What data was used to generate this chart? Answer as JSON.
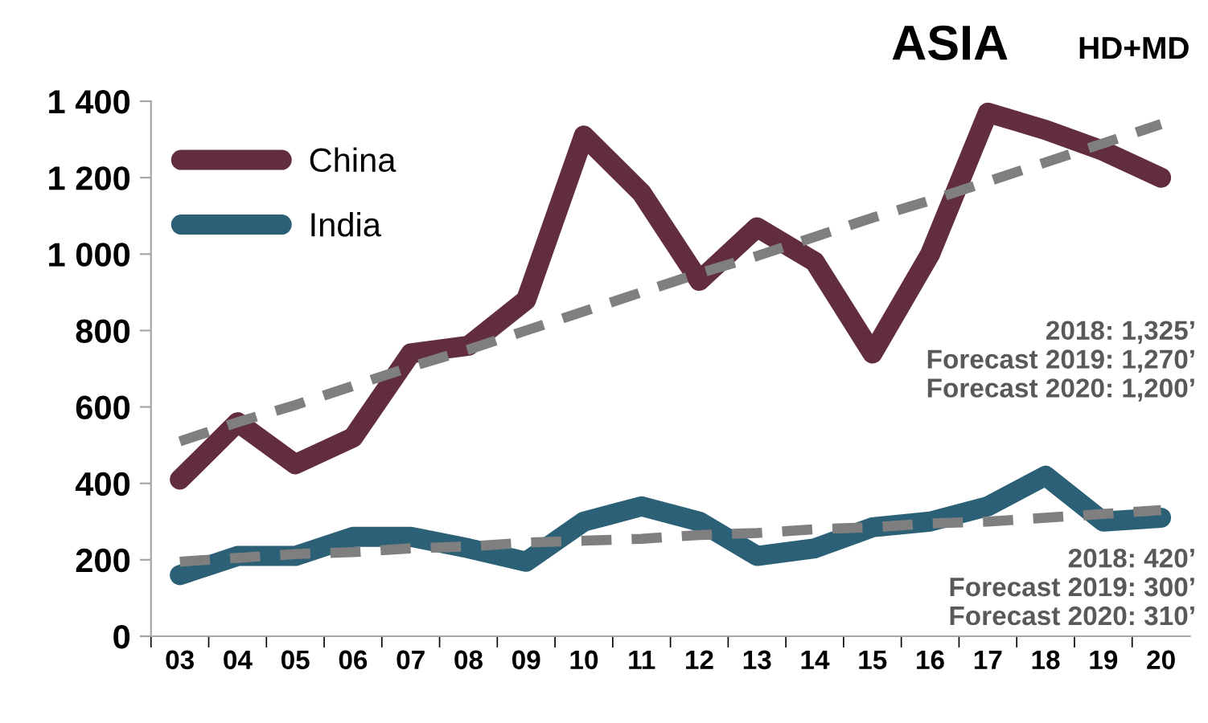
{
  "chart_data": {
    "type": "line",
    "title": "ASIA",
    "subtitle": "HD+MD",
    "categories": [
      "03",
      "04",
      "05",
      "06",
      "07",
      "08",
      "09",
      "10",
      "11",
      "12",
      "13",
      "14",
      "15",
      "16",
      "17",
      "18",
      "19",
      "20"
    ],
    "series": [
      {
        "name": "China",
        "color": "#622d3f",
        "values": [
          410,
          560,
          450,
          520,
          740,
          760,
          880,
          1310,
          1160,
          930,
          1070,
          980,
          740,
          1000,
          1370,
          1325,
          1270,
          1200
        ]
      },
      {
        "name": "India",
        "color": "#2b6077",
        "values": [
          160,
          210,
          210,
          260,
          260,
          230,
          195,
          300,
          340,
          300,
          210,
          230,
          285,
          300,
          340,
          420,
          300,
          310
        ]
      },
      {
        "color": "#7f7f7f",
        "line_style": "dashed",
        "values": [
          510,
          560,
          605,
          655,
          705,
          750,
          800,
          850,
          900,
          950,
          995,
          1045,
          1095,
          1140,
          1190,
          1240,
          1290,
          1340
        ]
      },
      {
        "color": "#7f7f7f",
        "line_style": "dashed",
        "values": [
          195,
          205,
          215,
          220,
          230,
          235,
          245,
          250,
          255,
          265,
          270,
          280,
          285,
          295,
          300,
          310,
          320,
          330
        ]
      }
    ],
    "ylim": [
      0,
      1400
    ],
    "yticks": [
      {
        "value": 0,
        "label": "0"
      },
      {
        "value": 200,
        "label": "200"
      },
      {
        "value": 400,
        "label": "400"
      },
      {
        "value": 600,
        "label": "600"
      },
      {
        "value": 800,
        "label": "800"
      },
      {
        "value": 1000,
        "label": "1 000"
      },
      {
        "value": 1200,
        "label": "1 200"
      },
      {
        "value": 1400,
        "label": "1 400"
      }
    ],
    "annotations": [
      "2018: 1,325’\nForecast 2019: 1,270’\nForecast 2020: 1,200’",
      "2018: 420’\nForecast 2019: 300’\nForecast 2020: 310’"
    ],
    "legend": "top left",
    "grid": false,
    "marker": "none",
    "line_style": "solid"
  }
}
